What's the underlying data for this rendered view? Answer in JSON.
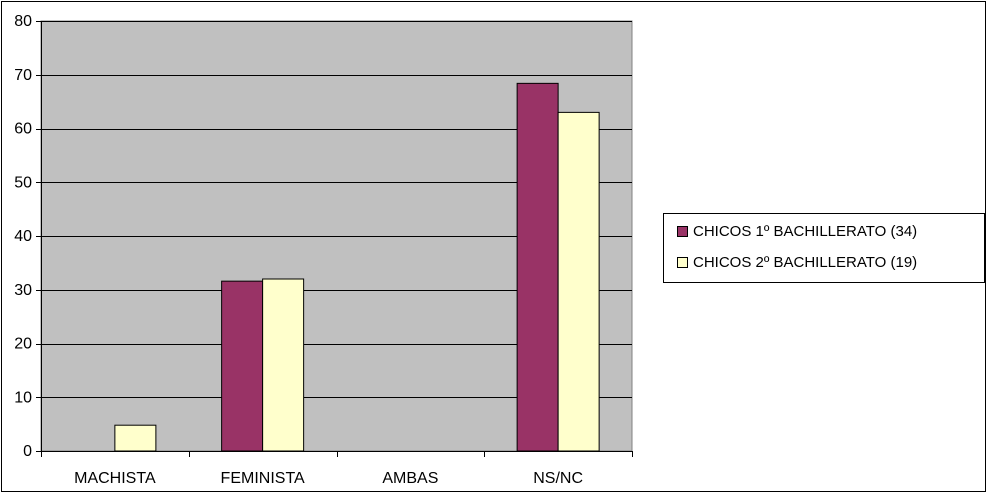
{
  "chart_data": {
    "type": "bar",
    "categories": [
      "MACHISTA",
      "FEMINISTA",
      "AMBAS",
      "NS/NC"
    ],
    "series": [
      {
        "name": "CHICOS 1º BACHILLERATO (34)",
        "values": [
          0,
          31.6,
          0,
          68.4
        ],
        "color": "#993366"
      },
      {
        "name": "CHICOS 2º BACHILLERATO (19)",
        "values": [
          4.8,
          32,
          0,
          63
        ],
        "color": "#ffffcc"
      }
    ],
    "y_ticks": [
      "0",
      "10",
      "20",
      "30",
      "40",
      "50",
      "60",
      "70",
      "80"
    ],
    "ylim": [
      0,
      80
    ],
    "grid": true,
    "plot_background": "#c0c0c0",
    "legend_position": "right"
  }
}
